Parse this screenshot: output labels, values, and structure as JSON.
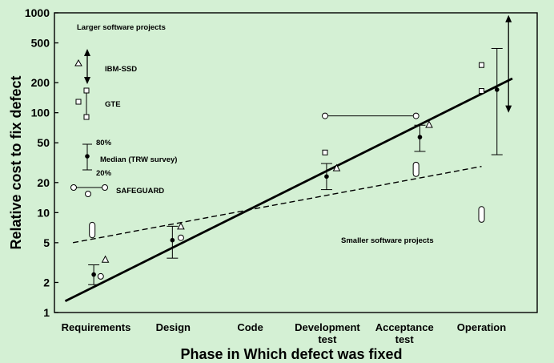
{
  "chart_data": {
    "type": "scatter",
    "title": "",
    "xlabel": "Phase in Which defect was fixed",
    "ylabel": "Relative cost to fix defect",
    "y_scale": "log",
    "ylim": [
      1,
      1000
    ],
    "y_ticks": [
      1,
      2,
      5,
      10,
      20,
      50,
      100,
      200,
      500,
      1000
    ],
    "y_tick_labels": [
      "1",
      "2",
      "5",
      "10",
      "20",
      "50",
      "100",
      "200",
      "500",
      "1000"
    ],
    "categories": [
      "Requirements",
      "Design",
      "Code",
      "Development test",
      "Acceptance test",
      "Operation"
    ],
    "category_labels": [
      [
        "Requirements"
      ],
      [
        "Design"
      ],
      [
        "Code"
      ],
      [
        "Development",
        "test"
      ],
      [
        "Acceptance",
        "test"
      ],
      [
        "Operation"
      ]
    ],
    "grid": false,
    "legend": [
      {
        "text": "Larger software projects"
      },
      {
        "text": "IBM-SSD",
        "marker": "triangle"
      },
      {
        "text": "GTE",
        "marker": "square"
      },
      {
        "text": "80%"
      },
      {
        "text": "Median (TRW survey)",
        "marker": "dot"
      },
      {
        "text": "20%"
      },
      {
        "text": "SAFEGUARD",
        "marker": "circle"
      }
    ],
    "annotations": [
      {
        "text": "Smaller software projects"
      }
    ],
    "large_trend": {
      "from": [
        -0.4,
        1.3
      ],
      "to": [
        5.4,
        220
      ],
      "style": "solid"
    },
    "small_trend": {
      "from": [
        -0.3,
        5
      ],
      "to": [
        5.0,
        29
      ],
      "style": "dashed"
    },
    "points": [
      {
        "marker": "triangle",
        "x": 0.12,
        "y": 3.4
      },
      {
        "marker": "dot",
        "x": -0.03,
        "y": 2.4
      },
      {
        "marker": "circle",
        "x": 0.06,
        "y": 2.3
      },
      {
        "marker": "triangle",
        "x": 1.1,
        "y": 7.3
      },
      {
        "marker": "dot",
        "x": 0.99,
        "y": 5.3
      },
      {
        "marker": "circle",
        "x": 1.1,
        "y": 5.6
      },
      {
        "marker": "square",
        "x": 2.97,
        "y": 40
      },
      {
        "marker": "triangle",
        "x": 3.12,
        "y": 28
      },
      {
        "marker": "dot",
        "x": 2.99,
        "y": 23
      },
      {
        "marker": "triangle",
        "x": 4.32,
        "y": 76
      },
      {
        "marker": "dot",
        "x": 4.2,
        "y": 57
      },
      {
        "marker": "square",
        "x": 5.0,
        "y": 300
      },
      {
        "marker": "square",
        "x": 5.0,
        "y": 165
      },
      {
        "marker": "dot",
        "x": 5.2,
        "y": 170
      },
      {
        "marker": "circle",
        "x": 2.97,
        "y": 93
      },
      {
        "marker": "circle",
        "x": 4.15,
        "y": 93
      }
    ],
    "safeguard_range": [
      {
        "x_from": 2.97,
        "x_to": 4.15,
        "y": 93
      }
    ],
    "small_project_ranges": [
      {
        "x": -0.05,
        "low": 5.6,
        "high": 8.0
      },
      {
        "x": 4.15,
        "low": 23,
        "high": 32
      },
      {
        "x": 5.0,
        "low": 8.0,
        "high": 11.5
      }
    ],
    "ranges_20_80": [
      {
        "x": -0.03,
        "low": 1.9,
        "high": 3.0
      },
      {
        "x": 0.99,
        "low": 3.5,
        "high": 7.3
      },
      {
        "x": 2.99,
        "low": 17,
        "high": 31
      },
      {
        "x": 4.2,
        "low": 41,
        "high": 75
      },
      {
        "x": 5.2,
        "low": 38,
        "high": 440
      }
    ],
    "large_project_range": {
      "x": 5.35,
      "low": 100,
      "high": 950,
      "arrowheads": true
    }
  }
}
